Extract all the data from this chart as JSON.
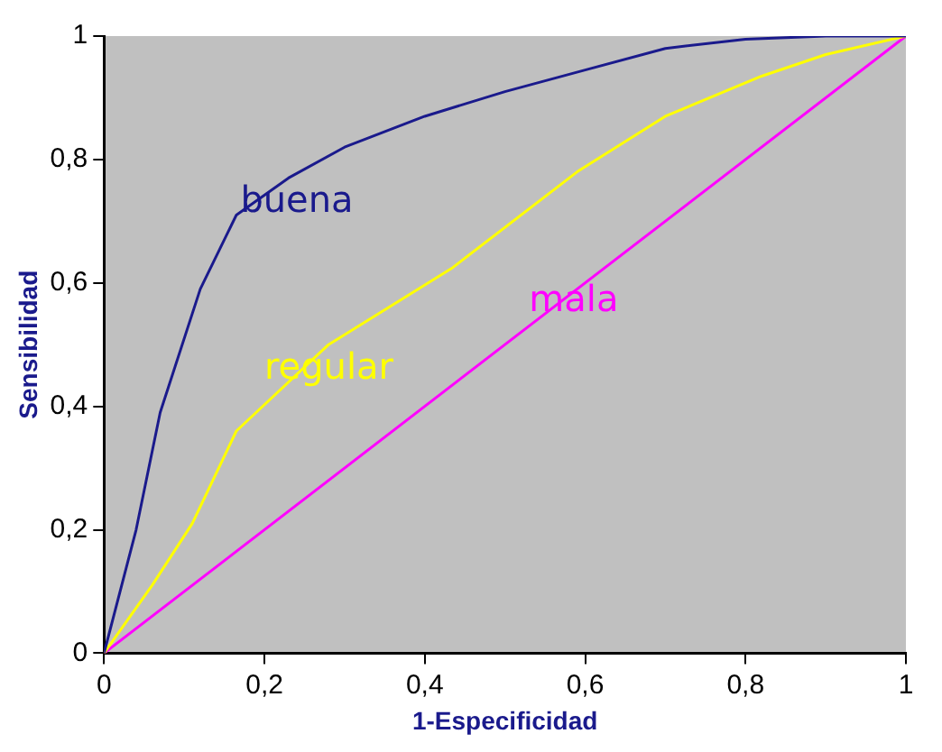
{
  "chart_data": {
    "type": "line",
    "xlabel": "1-Especificidad",
    "ylabel": "Sensibilidad",
    "xlim": [
      0,
      1
    ],
    "ylim": [
      0,
      1
    ],
    "xticks": [
      0,
      {
        "value": 0.2,
        "label": "0,2"
      },
      {
        "value": 0.4,
        "label": "0,4"
      },
      {
        "value": 0.6,
        "label": "0,6"
      },
      {
        "value": 0.8,
        "label": "0,8"
      },
      1
    ],
    "yticks": [
      0,
      {
        "value": 0.2,
        "label": "0,2"
      },
      {
        "value": 0.4,
        "label": "0,4"
      },
      {
        "value": 0.6,
        "label": "0,6"
      },
      {
        "value": 0.8,
        "label": "0,8"
      },
      1
    ],
    "grid": false,
    "legend": false,
    "marker": "none",
    "line_style": "solid",
    "series": [
      {
        "name": "buena",
        "color": "#1a1a8c",
        "x": [
          0,
          0.04,
          0.07,
          0.12,
          0.165,
          0.23,
          0.3,
          0.4,
          0.5,
          0.6,
          0.7,
          0.8,
          0.9,
          1
        ],
        "values": [
          0,
          0.2,
          0.39,
          0.59,
          0.71,
          0.77,
          0.82,
          0.87,
          0.91,
          0.945,
          0.98,
          0.995,
          1,
          1
        ]
      },
      {
        "name": "regular",
        "color": "#ffff00",
        "x": [
          0,
          0.06,
          0.11,
          0.165,
          0.28,
          0.435,
          0.59,
          0.7,
          0.82,
          0.9,
          1
        ],
        "values": [
          0,
          0.11,
          0.21,
          0.36,
          0.5,
          0.625,
          0.78,
          0.87,
          0.935,
          0.97,
          1
        ]
      },
      {
        "name": "mala",
        "color": "#ff00ff",
        "x": [
          0,
          1
        ],
        "values": [
          0,
          1
        ]
      }
    ]
  }
}
